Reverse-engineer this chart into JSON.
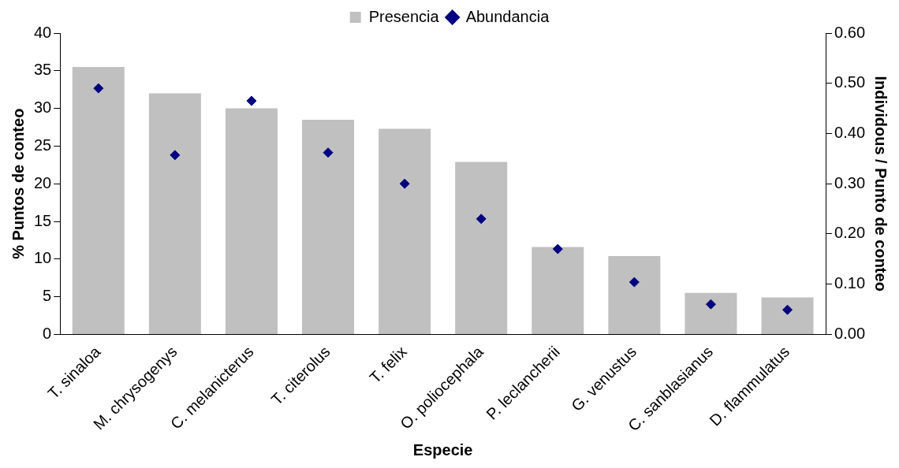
{
  "chart_data": {
    "type": "bar",
    "xlabel": "Especie",
    "ylabel": "% Puntos de conteo",
    "y2label": "Individous / Punto de conteo",
    "categories": [
      "T. sinaloa",
      "M. chrysogenys",
      "C. melanicterus",
      "T. citerolus",
      "T. felix",
      "O. poliocephala",
      "P. leclancherii",
      "G. venustus",
      "C. sanblasianus",
      "D. flammulatus"
    ],
    "series": [
      {
        "name": "Presencia",
        "color": "#c0c0c0",
        "values": [
          35.5,
          32.0,
          30.0,
          28.5,
          27.3,
          22.9,
          11.6,
          10.4,
          5.5,
          4.9
        ]
      },
      {
        "name": "Abundancia",
        "type": "scatter",
        "axis": "y2",
        "color": "#000080",
        "values": [
          0.49,
          0.357,
          0.465,
          0.362,
          0.3,
          0.23,
          0.17,
          0.104,
          0.06,
          0.049
        ]
      }
    ],
    "ylim": [
      0,
      40
    ],
    "yticks": [
      0,
      5,
      10,
      15,
      20,
      25,
      30,
      35,
      40
    ],
    "y2lim": [
      0,
      0.6
    ],
    "y2ticks": [
      {
        "value": 0,
        "label": "0.00"
      },
      {
        "value": 0.1,
        "label": "0.10"
      },
      {
        "value": 0.2,
        "label": "0.20"
      },
      {
        "value": 0.3,
        "label": "0.30"
      },
      {
        "value": 0.4,
        "label": "0.40"
      },
      {
        "value": 0.5,
        "label": "0.50"
      },
      {
        "value": 0.6,
        "label": "0.60"
      }
    ],
    "marker": "diamond",
    "legend": "top",
    "grid": false
  }
}
